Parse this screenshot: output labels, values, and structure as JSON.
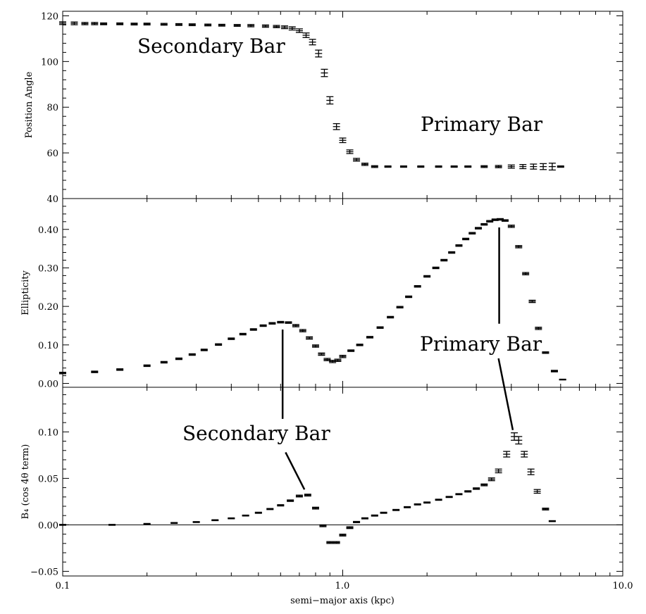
{
  "chart_data": {
    "type": "scatter",
    "x": {
      "label": "semi−major axis (kpc)",
      "scale": "log",
      "range": [
        0.1,
        10.0
      ],
      "tick_labels": [
        "0.1",
        "1.0",
        "10.0"
      ]
    },
    "panels": [
      {
        "id": "position-angle",
        "ylabel": "Position Angle",
        "ylim": [
          40,
          122
        ],
        "tick_labels": [
          "40",
          "60",
          "80",
          "100",
          "120"
        ],
        "annotations": [
          {
            "text": "Secondary Bar",
            "x": 0.195,
            "y": 112
          },
          {
            "text": "Primary Bar",
            "x": 4.15,
            "y": 69
          }
        ],
        "points": [
          [
            0.1,
            116.8,
            0.6
          ],
          [
            0.11,
            116.7,
            0.6
          ],
          [
            0.12,
            116.6,
            0.5
          ],
          [
            0.13,
            116.6,
            0.5
          ],
          [
            0.14,
            116.5,
            0.4
          ],
          [
            0.16,
            116.5,
            0.4
          ],
          [
            0.18,
            116.4,
            0.4
          ],
          [
            0.2,
            116.4,
            0.4
          ],
          [
            0.23,
            116.3,
            0.4
          ],
          [
            0.26,
            116.2,
            0.4
          ],
          [
            0.29,
            116.1,
            0.4
          ],
          [
            0.33,
            116.0,
            0.4
          ],
          [
            0.37,
            115.9,
            0.4
          ],
          [
            0.42,
            115.8,
            0.4
          ],
          [
            0.47,
            115.7,
            0.5
          ],
          [
            0.53,
            115.5,
            0.5
          ],
          [
            0.58,
            115.3,
            0.5
          ],
          [
            0.62,
            115.0,
            0.6
          ],
          [
            0.66,
            114.5,
            0.7
          ],
          [
            0.7,
            113.5,
            0.8
          ],
          [
            0.74,
            111.5,
            1.0
          ],
          [
            0.78,
            108.5,
            1.2
          ],
          [
            0.82,
            103.5,
            1.5
          ],
          [
            0.86,
            95.0,
            1.6
          ],
          [
            0.9,
            83.0,
            1.6
          ],
          [
            0.95,
            71.5,
            1.3
          ],
          [
            1.0,
            65.5,
            1.0
          ],
          [
            1.06,
            60.5,
            0.8
          ],
          [
            1.12,
            57.0,
            0.6
          ],
          [
            1.2,
            55.0,
            0.5
          ],
          [
            1.3,
            54.0,
            0.4
          ],
          [
            1.45,
            54.0,
            0.3
          ],
          [
            1.65,
            54.0,
            0.3
          ],
          [
            1.9,
            54.0,
            0.3
          ],
          [
            2.2,
            54.0,
            0.3
          ],
          [
            2.5,
            54.0,
            0.3
          ],
          [
            2.8,
            54.0,
            0.3
          ],
          [
            3.2,
            54.0,
            0.4
          ],
          [
            3.6,
            54.0,
            0.5
          ],
          [
            4.0,
            54.0,
            0.7
          ],
          [
            4.4,
            54.0,
            0.9
          ],
          [
            4.8,
            54.0,
            1.1
          ],
          [
            5.2,
            54.0,
            1.3
          ],
          [
            5.6,
            54.0,
            1.5
          ],
          [
            6.0,
            54.0,
            0.3
          ]
        ]
      },
      {
        "id": "ellipticity",
        "ylabel": "Ellipticity",
        "ylim": [
          -0.01,
          0.48
        ],
        "tick_labels": [
          "0.00",
          "0.10",
          "0.20",
          "0.30",
          "0.40"
        ],
        "annotations": [
          {
            "text": "Primary Bar",
            "x": 3.3,
            "y": 0.105
          }
        ],
        "points": [
          [
            0.1,
            0.027,
            0.002
          ],
          [
            0.13,
            0.03,
            0.002
          ],
          [
            0.16,
            0.036,
            0.002
          ],
          [
            0.2,
            0.046,
            0.002
          ],
          [
            0.23,
            0.055,
            0.002
          ],
          [
            0.26,
            0.064,
            0.002
          ],
          [
            0.29,
            0.075,
            0.002
          ],
          [
            0.32,
            0.087,
            0.002
          ],
          [
            0.36,
            0.101,
            0.002
          ],
          [
            0.4,
            0.116,
            0.002
          ],
          [
            0.44,
            0.128,
            0.002
          ],
          [
            0.48,
            0.14,
            0.002
          ],
          [
            0.52,
            0.15,
            0.002
          ],
          [
            0.56,
            0.156,
            0.002
          ],
          [
            0.6,
            0.159,
            0.002
          ],
          [
            0.64,
            0.158,
            0.002
          ],
          [
            0.68,
            0.15,
            0.003
          ],
          [
            0.72,
            0.137,
            0.003
          ],
          [
            0.76,
            0.118,
            0.003
          ],
          [
            0.8,
            0.097,
            0.003
          ],
          [
            0.84,
            0.076,
            0.003
          ],
          [
            0.88,
            0.062,
            0.003
          ],
          [
            0.92,
            0.057,
            0.003
          ],
          [
            0.96,
            0.06,
            0.003
          ],
          [
            1.0,
            0.07,
            0.003
          ],
          [
            1.07,
            0.085,
            0.002
          ],
          [
            1.15,
            0.1,
            0.002
          ],
          [
            1.25,
            0.12,
            0.002
          ],
          [
            1.36,
            0.145,
            0.002
          ],
          [
            1.48,
            0.172,
            0.002
          ],
          [
            1.6,
            0.198,
            0.002
          ],
          [
            1.72,
            0.225,
            0.002
          ],
          [
            1.85,
            0.252,
            0.002
          ],
          [
            2.0,
            0.278,
            0.002
          ],
          [
            2.15,
            0.3,
            0.002
          ],
          [
            2.3,
            0.32,
            0.002
          ],
          [
            2.45,
            0.34,
            0.002
          ],
          [
            2.6,
            0.358,
            0.002
          ],
          [
            2.75,
            0.375,
            0.002
          ],
          [
            2.9,
            0.39,
            0.002
          ],
          [
            3.05,
            0.403,
            0.002
          ],
          [
            3.2,
            0.413,
            0.002
          ],
          [
            3.35,
            0.421,
            0.002
          ],
          [
            3.5,
            0.425,
            0.002
          ],
          [
            3.65,
            0.426,
            0.002
          ],
          [
            3.8,
            0.423,
            0.002
          ],
          [
            4.0,
            0.408,
            0.003
          ],
          [
            4.25,
            0.355,
            0.003
          ],
          [
            4.5,
            0.285,
            0.003
          ],
          [
            4.75,
            0.213,
            0.003
          ],
          [
            5.0,
            0.143,
            0.003
          ],
          [
            5.3,
            0.08,
            0.002
          ],
          [
            5.7,
            0.032,
            0.002
          ],
          [
            6.1,
            0.01,
            0.001
          ]
        ]
      },
      {
        "id": "b4",
        "ylabel": "B₄ (cos 4θ term)",
        "ylim": [
          -0.055,
          0.148
        ],
        "tick_labels": [
          "−0.05",
          "0.00",
          "0.05",
          "0.10"
        ],
        "zero_line": true,
        "annotations": [
          {
            "text": "Secondary Bar",
            "x": 0.6,
            "y": 0.097
          }
        ],
        "points": [
          [
            0.1,
            0.0,
            0.0005
          ],
          [
            0.15,
            0.0,
            0.0005
          ],
          [
            0.2,
            0.001,
            0.0005
          ],
          [
            0.25,
            0.002,
            0.0005
          ],
          [
            0.3,
            0.003,
            0.0005
          ],
          [
            0.35,
            0.005,
            0.0005
          ],
          [
            0.4,
            0.007,
            0.0005
          ],
          [
            0.45,
            0.01,
            0.0005
          ],
          [
            0.5,
            0.013,
            0.0006
          ],
          [
            0.55,
            0.017,
            0.0006
          ],
          [
            0.6,
            0.021,
            0.0007
          ],
          [
            0.65,
            0.026,
            0.0008
          ],
          [
            0.7,
            0.031,
            0.001
          ],
          [
            0.75,
            0.032,
            0.001
          ],
          [
            0.8,
            0.018,
            0.001
          ],
          [
            0.85,
            -0.001,
            0.001
          ],
          [
            0.9,
            -0.019,
            0.001
          ],
          [
            0.95,
            -0.019,
            0.001
          ],
          [
            1.0,
            -0.011,
            0.001
          ],
          [
            1.06,
            -0.003,
            0.001
          ],
          [
            1.12,
            0.003,
            0.0007
          ],
          [
            1.2,
            0.007,
            0.0006
          ],
          [
            1.3,
            0.01,
            0.0006
          ],
          [
            1.4,
            0.013,
            0.0006
          ],
          [
            1.55,
            0.016,
            0.0006
          ],
          [
            1.7,
            0.019,
            0.0006
          ],
          [
            1.85,
            0.022,
            0.0006
          ],
          [
            2.0,
            0.024,
            0.0006
          ],
          [
            2.2,
            0.027,
            0.0006
          ],
          [
            2.4,
            0.03,
            0.0006
          ],
          [
            2.6,
            0.033,
            0.0006
          ],
          [
            2.8,
            0.036,
            0.0007
          ],
          [
            3.0,
            0.039,
            0.0008
          ],
          [
            3.2,
            0.043,
            0.001
          ],
          [
            3.4,
            0.049,
            0.0015
          ],
          [
            3.6,
            0.058,
            0.002
          ],
          [
            3.85,
            0.076,
            0.003
          ],
          [
            4.1,
            0.095,
            0.004
          ],
          [
            4.25,
            0.091,
            0.004
          ],
          [
            4.45,
            0.076,
            0.003
          ],
          [
            4.7,
            0.057,
            0.003
          ],
          [
            4.95,
            0.036,
            0.002
          ],
          [
            5.3,
            0.017,
            0.001
          ],
          [
            5.6,
            0.004,
            0.0005
          ]
        ]
      }
    ],
    "connector_lines": [
      {
        "from": {
          "panel": "ellipticity",
          "x": 0.61,
          "y": 0.14
        },
        "to": {
          "panel": "b4",
          "x": 0.61,
          "y": 0.114
        }
      },
      {
        "from": {
          "panel": "b4",
          "x": 0.625,
          "y": 0.078
        },
        "to": {
          "panel": "b4",
          "x": 0.73,
          "y": 0.038
        }
      },
      {
        "from": {
          "panel": "ellipticity",
          "x": 3.62,
          "y": 0.405
        },
        "to": {
          "panel": "ellipticity",
          "x": 3.62,
          "y": 0.155
        }
      },
      {
        "from": {
          "panel": "ellipticity",
          "x": 3.6,
          "y": 0.065
        },
        "to": {
          "panel": "b4",
          "x": 4.05,
          "y": 0.102
        }
      }
    ],
    "colors": {
      "ink": "#000000",
      "background": "#ffffff"
    }
  }
}
